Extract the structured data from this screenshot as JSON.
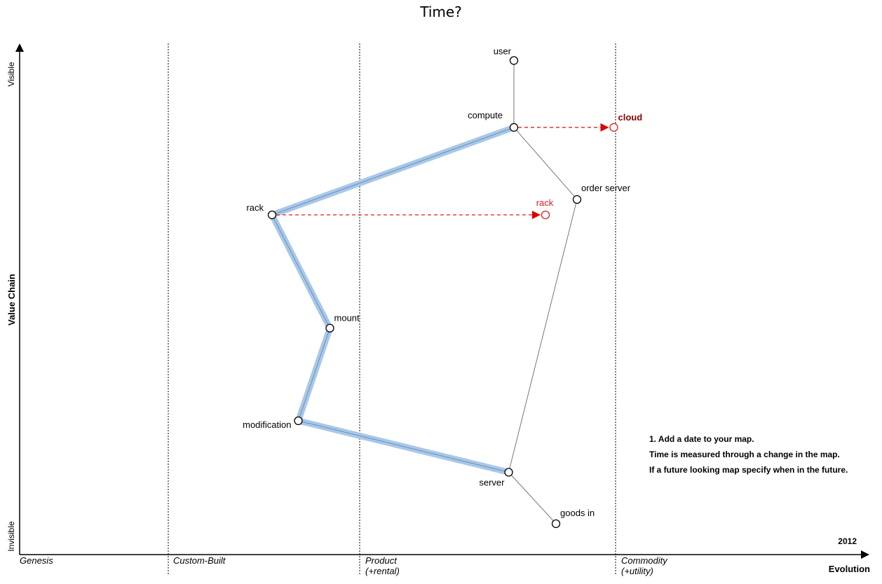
{
  "title": "Time?",
  "year": "2012",
  "axes": {
    "y_label": "Value Chain",
    "y_top": "Visible",
    "y_bottom": "Invisible",
    "x_label": "Evolution"
  },
  "stages": [
    {
      "name": "Genesis",
      "sub": ""
    },
    {
      "name": "Custom-Built",
      "sub": ""
    },
    {
      "name": "Product",
      "sub": "(+rental)"
    },
    {
      "name": "Commodity",
      "sub": "(+utility)"
    }
  ],
  "components": [
    {
      "id": "user",
      "label": "user",
      "evolution": 0.94,
      "visibility": 0.96
    },
    {
      "id": "compute",
      "label": "compute",
      "evolution": 0.94,
      "visibility": 0.83
    },
    {
      "id": "order-server",
      "label": "order server",
      "evolution": 1.06,
      "visibility": 0.69
    },
    {
      "id": "rack",
      "label": "rack",
      "evolution": 0.48,
      "visibility": 0.66
    },
    {
      "id": "mount",
      "label": "mount",
      "evolution": 0.59,
      "visibility": 0.44
    },
    {
      "id": "modification",
      "label": "modification",
      "evolution": 0.53,
      "visibility": 0.26
    },
    {
      "id": "server",
      "label": "server",
      "evolution": 0.93,
      "visibility": 0.16
    },
    {
      "id": "goods-in",
      "label": "goods in",
      "evolution": 1.02,
      "visibility": 0.06
    }
  ],
  "evolved": [
    {
      "id": "cloud",
      "label": "cloud",
      "evolution": 1.13,
      "visibility": 0.83,
      "from": "compute",
      "color": "#8b0000"
    },
    {
      "id": "rack-evolved",
      "label": "rack",
      "evolution": 1.0,
      "visibility": 0.66,
      "from": "rack",
      "color": "#e02020"
    }
  ],
  "links": [
    [
      "user",
      "compute"
    ],
    [
      "compute",
      "order-server"
    ],
    [
      "order-server",
      "server"
    ],
    [
      "server",
      "goods-in"
    ]
  ],
  "highlight_path": [
    "compute",
    "rack",
    "mount",
    "modification",
    "server"
  ],
  "notes": [
    "1. Add a date to your map.",
    "Time is measured through a change in the map.",
    "If a future looking map specify when in the future."
  ],
  "colors": {
    "highlight": "#a8c8ea",
    "evolve_arrow": "#e02020"
  }
}
